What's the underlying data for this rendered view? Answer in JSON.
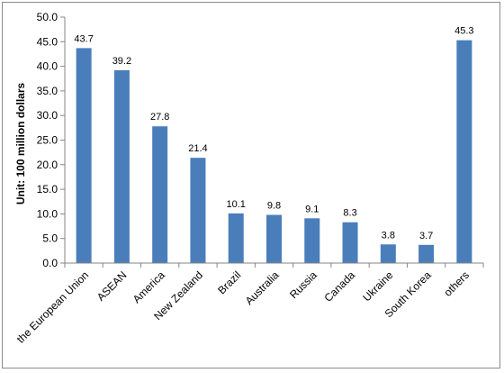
{
  "chart_data": {
    "type": "bar",
    "categories": [
      "the European Union",
      "ASEAN",
      "America",
      "New Zealand",
      "Brazil",
      "Australia",
      "Russia",
      "Canada",
      "Ukraine",
      "South Korea",
      "others"
    ],
    "values": [
      43.7,
      39.2,
      27.8,
      21.4,
      10.1,
      9.8,
      9.1,
      8.3,
      3.8,
      3.7,
      45.3
    ],
    "value_labels": [
      "43.7",
      "39.2",
      "27.8",
      "21.4",
      "10.1",
      "9.8",
      "9.1",
      "8.3",
      "3.8",
      "3.7",
      "45.3"
    ],
    "yticks": [
      "0.0",
      "5.0",
      "10.0",
      "15.0",
      "20.0",
      "25.0",
      "30.0",
      "35.0",
      "40.0",
      "45.0",
      "50.0"
    ],
    "ylim": [
      0,
      50
    ],
    "ylabel": "Unit: 100  million dollars",
    "xlabel": "",
    "title": "",
    "grid": false,
    "legend": "none",
    "bar_color": "#4a7ebb"
  }
}
